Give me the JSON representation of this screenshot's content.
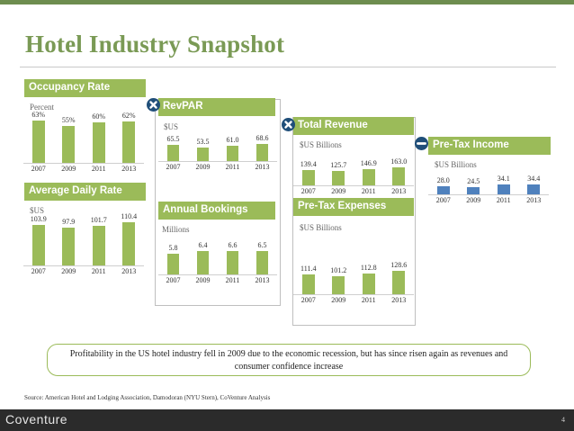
{
  "title": "Hotel Industry Snapshot",
  "colors": {
    "green": "#9bbb59",
    "blue": "#4f81bd",
    "operator": "#1f4e79"
  },
  "chart_data": [
    {
      "id": "occupancy",
      "type": "bar",
      "title": "Occupancy Rate",
      "unit": "Percent",
      "categories": [
        "2007",
        "2009",
        "2011",
        "2013"
      ],
      "values": [
        63,
        55,
        60,
        62
      ],
      "labels": [
        "63%",
        "55%",
        "60%",
        "62%"
      ],
      "ylim": [
        0,
        70
      ],
      "color": "green"
    },
    {
      "id": "adr",
      "type": "bar",
      "title": "Average Daily Rate",
      "unit": "$US",
      "categories": [
        "2007",
        "2009",
        "2011",
        "2013"
      ],
      "values": [
        103.9,
        97.9,
        101.7,
        110.4
      ],
      "labels": [
        "103.9",
        "97.9",
        "101.7",
        "110.4"
      ],
      "ylim": [
        0,
        120
      ],
      "color": "green"
    },
    {
      "id": "revpar",
      "type": "bar",
      "title": "RevPAR",
      "unit": "$US",
      "categories": [
        "2007",
        "2009",
        "2011",
        "2013"
      ],
      "values": [
        65.5,
        53.5,
        61.0,
        68.6
      ],
      "labels": [
        "65.5",
        "53.5",
        "61.0",
        "68.6"
      ],
      "ylim": [
        0,
        80
      ],
      "color": "green"
    },
    {
      "id": "bookings",
      "type": "bar",
      "title": "Annual Bookings",
      "unit": "Millions",
      "categories": [
        "2007",
        "2009",
        "2011",
        "2013"
      ],
      "values": [
        5.8,
        6.4,
        6.6,
        6.5
      ],
      "labels": [
        "5.8",
        "6.4",
        "6.6",
        "6.5"
      ],
      "ylim": [
        0,
        8
      ],
      "color": "green"
    },
    {
      "id": "revenue",
      "type": "bar",
      "title": "Total Revenue",
      "unit": "$US Billions",
      "categories": [
        "2007",
        "2009",
        "2011",
        "2013"
      ],
      "values": [
        139.4,
        125.7,
        146.9,
        163.0
      ],
      "labels": [
        "139.4",
        "125.7",
        "146.9",
        "163.0"
      ],
      "ylim": [
        0,
        200
      ],
      "color": "green"
    },
    {
      "id": "expenses",
      "type": "bar",
      "title": "Pre-Tax Expenses",
      "unit": "$US Billions",
      "categories": [
        "2007",
        "2009",
        "2011",
        "2013"
      ],
      "values": [
        111.4,
        101.2,
        112.8,
        128.6
      ],
      "labels": [
        "111.4",
        "101.2",
        "112.8",
        "128.6"
      ],
      "ylim": [
        0,
        160
      ],
      "color": "green"
    },
    {
      "id": "pretax",
      "type": "bar",
      "title": "Pre-Tax Income",
      "unit": "$US Billions",
      "categories": [
        "2007",
        "2009",
        "2011",
        "2013"
      ],
      "values": [
        28.0,
        24.5,
        34.1,
        34.4
      ],
      "labels": [
        "28.0",
        "24.5",
        "34.1",
        "34.4"
      ],
      "ylim": [
        0,
        45
      ],
      "color": "blue"
    }
  ],
  "callout": "Profitability in the US hotel industry fell in 2009 due to the economic recession, but has since risen again as revenues and consumer confidence increase",
  "source": "Source: American Hotel and Lodging Association, Damodoran (NYU Stern), CoVenture Analysis",
  "footer": {
    "logo": "Coventure",
    "page": "4"
  },
  "operators": {
    "multiply_1": "times-icon",
    "multiply_2": "times-icon",
    "subtract": "minus-icon"
  }
}
